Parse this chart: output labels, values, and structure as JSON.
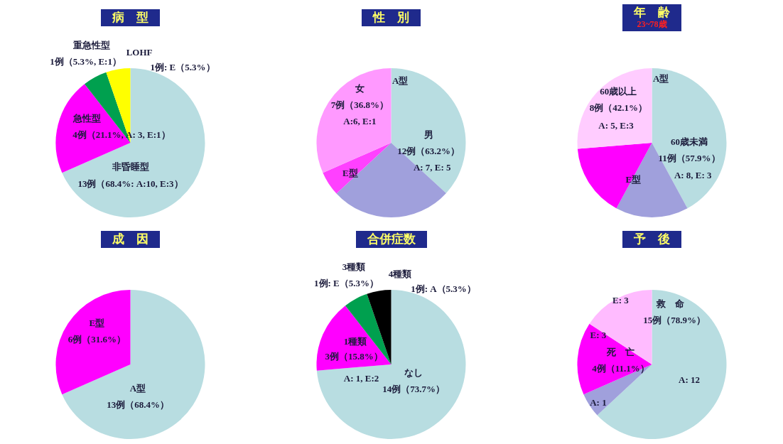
{
  "chart_data": [
    {
      "type": "pie",
      "title": "病　型",
      "categories": [
        "非昏睡型",
        "急性型",
        "重急性型",
        "LOHF"
      ],
      "values": [
        13,
        4,
        1,
        1
      ],
      "colors": [
        "#b8dde1",
        "#ff00ff",
        "#00a04f",
        "#ffff00"
      ],
      "value_labels": [
        "13例（68.4%: A:10, E:3）",
        "4例（21.1%, A: 3, E:1）",
        "1例（5.3%, E:1）",
        "1例: E（5.3%）"
      ]
    },
    {
      "type": "pie",
      "title": "性　別",
      "categories": [
        null,
        null,
        null,
        null
      ],
      "values": [
        36.8,
        26.3,
        5.3,
        31.6
      ],
      "colors": [
        "#b8dde1",
        "#a0a0dc",
        "#ff40ff",
        "#ff99ff"
      ],
      "annotations": [
        "A型",
        "E型",
        "男",
        "12例（63.2%）",
        "A: 7, E: 5",
        "女",
        "7例（36.8%）",
        "A:6, E:1"
      ]
    },
    {
      "type": "pie",
      "title": "年　齢",
      "subtitle": "23~78歳",
      "categories": [
        null,
        null,
        null,
        null
      ],
      "values": [
        42.1,
        15.8,
        15.8,
        26.3
      ],
      "colors": [
        "#b8dde1",
        "#a0a0dc",
        "#ff00ff",
        "#ffccff"
      ],
      "annotations": [
        "A型",
        "60歳以上",
        "8例（42.1%）",
        "A: 5, E:3",
        "E型",
        "60歳未満",
        "11例（57.9%）",
        "A: 8, E: 3"
      ]
    },
    {
      "type": "pie",
      "title": "成　因",
      "categories": [
        "A型",
        "E型"
      ],
      "values": [
        13,
        6
      ],
      "colors": [
        "#b8dde1",
        "#ff00ff"
      ],
      "value_labels": [
        "13例（68.4%）",
        "6例（31.6%）"
      ]
    },
    {
      "type": "pie",
      "title": "合併症数",
      "categories": [
        "なし",
        "1種類",
        "3種類",
        "4種類"
      ],
      "values": [
        14,
        3,
        1,
        1
      ],
      "colors": [
        "#b8dde1",
        "#ff00ff",
        "#00a04f",
        "#000000"
      ],
      "value_labels": [
        "14例（73.7%）",
        "3例（15.8%）",
        "1例: E（5.3%）",
        "1例: A（5.3%）"
      ],
      "annotations": [
        "A: 1, E:2"
      ]
    },
    {
      "type": "pie",
      "title": "予　後",
      "categories": [
        null,
        null,
        null,
        null
      ],
      "values": [
        63.1,
        5.3,
        15.8,
        15.8
      ],
      "colors": [
        "#b8dde1",
        "#a0a0dc",
        "#ff00ff",
        "#ffbbff"
      ],
      "annotations": [
        "E: 3",
        "救　命",
        "15例（78.9%）",
        "E: 3",
        "死　亡",
        "4例（11.1%）",
        "A: 1",
        "A: 12"
      ]
    }
  ]
}
